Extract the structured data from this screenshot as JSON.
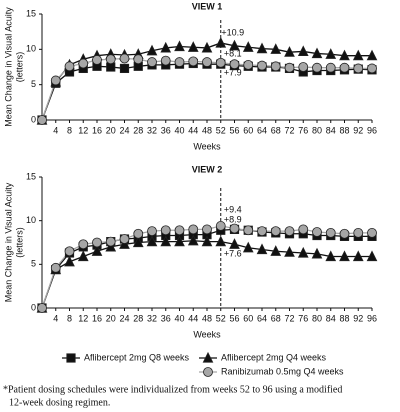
{
  "chart_data": [
    {
      "type": "line",
      "title": "VIEW 1",
      "xlabel": "Weeks",
      "ylabel": [
        "Mean Change in Visual Acuity",
        "(letters)"
      ],
      "x": [
        0,
        4,
        8,
        12,
        16,
        20,
        24,
        28,
        32,
        36,
        40,
        44,
        48,
        52,
        56,
        60,
        64,
        68,
        72,
        76,
        80,
        84,
        88,
        92,
        96
      ],
      "xlim": [
        0,
        96
      ],
      "xticks": [
        4,
        8,
        12,
        16,
        20,
        24,
        28,
        32,
        36,
        40,
        44,
        48,
        52,
        56,
        60,
        64,
        68,
        72,
        76,
        80,
        84,
        88,
        92,
        96
      ],
      "ylim": [
        0,
        15
      ],
      "yticks": [
        0,
        5,
        10,
        15
      ],
      "vline": 52,
      "annotations": [
        "+10.9",
        "+8.1",
        "+7.9"
      ],
      "series": [
        {
          "name": "Aflibercept 2mg Q8 weeks",
          "marker": "square",
          "color": "#111111",
          "values": [
            0,
            5.2,
            6.8,
            7.3,
            7.6,
            7.5,
            7.3,
            7.6,
            7.8,
            7.8,
            7.9,
            8.0,
            7.9,
            7.9,
            7.7,
            7.6,
            7.5,
            7.5,
            7.3,
            6.8,
            7.0,
            7.0,
            7.1,
            7.2,
            7.1
          ]
        },
        {
          "name": "Aflibercept 2mg Q4 weeks",
          "marker": "triangle",
          "color": "#111111",
          "values": [
            0,
            5.4,
            7.8,
            8.6,
            9.1,
            9.3,
            9.2,
            9.3,
            9.8,
            10.2,
            10.4,
            10.3,
            10.2,
            10.9,
            10.5,
            10.3,
            10.1,
            10.0,
            9.6,
            9.7,
            9.4,
            9.3,
            9.1,
            9.1,
            9.1
          ]
        },
        {
          "name": "Ranibizumab 0.5mg Q4 weeks",
          "marker": "circle",
          "color": "#a6a6a6",
          "values": [
            0,
            5.6,
            7.6,
            8.0,
            8.5,
            8.6,
            8.7,
            8.6,
            8.2,
            8.4,
            8.2,
            8.3,
            8.2,
            8.1,
            7.9,
            7.8,
            7.7,
            7.6,
            7.4,
            7.5,
            7.4,
            7.4,
            7.4,
            7.3,
            7.3
          ]
        }
      ]
    },
    {
      "type": "line",
      "title": "VIEW 2",
      "xlabel": "Weeks",
      "ylabel": [
        "Mean Change in Visual Acuity",
        "(letters)"
      ],
      "x": [
        0,
        4,
        8,
        12,
        16,
        20,
        24,
        28,
        32,
        36,
        40,
        44,
        48,
        52,
        56,
        60,
        64,
        68,
        72,
        76,
        80,
        84,
        88,
        92,
        96
      ],
      "xlim": [
        0,
        96
      ],
      "xticks": [
        4,
        8,
        12,
        16,
        20,
        24,
        28,
        32,
        36,
        40,
        44,
        48,
        52,
        56,
        60,
        64,
        68,
        72,
        76,
        80,
        84,
        88,
        92,
        96
      ],
      "ylim": [
        0,
        15
      ],
      "yticks": [
        0,
        5,
        10,
        15
      ],
      "vline": 52,
      "annotations": [
        "+9.4",
        "+8.9",
        "+7.6"
      ],
      "series": [
        {
          "name": "Aflibercept 2mg Q8 weeks",
          "marker": "square",
          "color": "#111111",
          "values": [
            0,
            4.4,
            6.3,
            7.0,
            7.2,
            7.6,
            7.9,
            8.0,
            8.2,
            8.3,
            8.3,
            8.4,
            8.4,
            8.9,
            9.0,
            8.9,
            8.7,
            8.6,
            8.5,
            8.5,
            8.3,
            8.3,
            8.2,
            8.2,
            8.2
          ]
        },
        {
          "name": "Aflibercept 2mg Q4 weeks",
          "marker": "triangle",
          "color": "#111111",
          "values": [
            0,
            4.4,
            5.3,
            5.9,
            6.5,
            7.0,
            7.3,
            7.5,
            7.6,
            7.6,
            7.6,
            7.7,
            7.6,
            7.6,
            7.3,
            6.9,
            6.7,
            6.5,
            6.4,
            6.3,
            6.2,
            5.9,
            5.9,
            5.9,
            5.9
          ]
        },
        {
          "name": "Ranibizumab 0.5mg Q4 weeks",
          "marker": "circle",
          "color": "#a6a6a6",
          "values": [
            0,
            4.6,
            6.5,
            7.3,
            7.5,
            7.6,
            7.9,
            8.5,
            8.8,
            8.9,
            8.9,
            9.0,
            9.0,
            9.4,
            9.1,
            8.9,
            8.8,
            8.8,
            8.8,
            9.0,
            8.7,
            8.6,
            8.5,
            8.6,
            8.6
          ]
        }
      ]
    }
  ],
  "footnote": [
    "*Patient dosing schedules were individualized from weeks 52 to 96 using a modified",
    "12-week dosing regimen."
  ]
}
